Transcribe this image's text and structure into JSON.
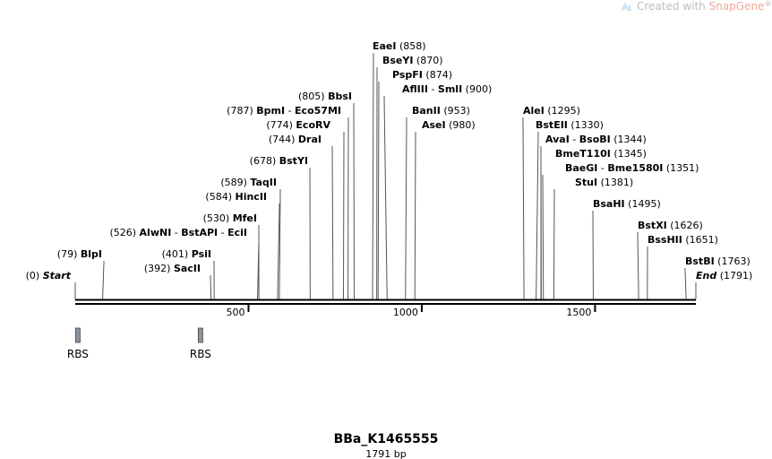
{
  "watermark": {
    "prefix": "Created with ",
    "brand": "SnapGene",
    "mark": "®",
    "icon": "snapgene-logo-icon"
  },
  "map": {
    "title": "BBa_K1465555",
    "subtitle": "1791 bp",
    "length": 1791,
    "ticks": [
      {
        "value": 500,
        "label": "500"
      },
      {
        "value": 1000,
        "label": "1000"
      },
      {
        "value": 1500,
        "label": "1500"
      }
    ],
    "colors": {
      "backbone": "#000000",
      "feature": "#8b949c",
      "connector": "#555555"
    }
  },
  "features": [
    {
      "name": "RBS",
      "start": 1,
      "end": 12
    },
    {
      "name": "RBS",
      "start": 355,
      "end": 366
    }
  ],
  "sites": [
    {
      "parts": [
        [
          "pos",
          "(0)"
        ],
        [
          "term",
          "Start"
        ]
      ],
      "pos": 0,
      "side": "left"
    },
    {
      "parts": [
        [
          "pos",
          "(79)"
        ],
        [
          "enz",
          "BlpI"
        ]
      ],
      "pos": 79,
      "side": "left"
    },
    {
      "parts": [
        [
          "pos",
          "(392)"
        ],
        [
          "enz",
          "SacII"
        ]
      ],
      "pos": 392,
      "side": "left"
    },
    {
      "parts": [
        [
          "pos",
          "(401)"
        ],
        [
          "enz",
          "PsiI"
        ]
      ],
      "pos": 401,
      "side": "left"
    },
    {
      "parts": [
        [
          "pos",
          "(526)"
        ],
        [
          "enz",
          "AlwNI"
        ],
        [
          "sep",
          " - "
        ],
        [
          "enz",
          "BstAPI"
        ],
        [
          "sep",
          " - "
        ],
        [
          "enz",
          "EciI"
        ]
      ],
      "pos": 526,
      "side": "left"
    },
    {
      "parts": [
        [
          "pos",
          "(530)"
        ],
        [
          "enz",
          "MfeI"
        ]
      ],
      "pos": 530,
      "side": "left"
    },
    {
      "parts": [
        [
          "pos",
          "(584)"
        ],
        [
          "enz",
          "HincII"
        ]
      ],
      "pos": 584,
      "side": "left"
    },
    {
      "parts": [
        [
          "pos",
          "(589)"
        ],
        [
          "enz",
          "TaqII"
        ]
      ],
      "pos": 589,
      "side": "left"
    },
    {
      "parts": [
        [
          "pos",
          "(678)"
        ],
        [
          "enz",
          "BstYI"
        ]
      ],
      "pos": 678,
      "side": "left"
    },
    {
      "parts": [
        [
          "pos",
          "(744)"
        ],
        [
          "enz",
          "DraI"
        ]
      ],
      "pos": 744,
      "side": "left"
    },
    {
      "parts": [
        [
          "pos",
          "(774)"
        ],
        [
          "enz",
          "EcoRV"
        ]
      ],
      "pos": 774,
      "side": "left"
    },
    {
      "parts": [
        [
          "pos",
          "(787)"
        ],
        [
          "enz",
          "BpmI"
        ],
        [
          "sep",
          " - "
        ],
        [
          "enz",
          "Eco57MI"
        ]
      ],
      "pos": 787,
      "side": "left"
    },
    {
      "parts": [
        [
          "pos",
          "(805)"
        ],
        [
          "enz",
          "BbsI"
        ]
      ],
      "pos": 805,
      "side": "left"
    },
    {
      "parts": [
        [
          "enz",
          "EaeI"
        ],
        [
          "pos",
          "(858)"
        ]
      ],
      "pos": 858,
      "side": "right"
    },
    {
      "parts": [
        [
          "enz",
          "BseYI"
        ],
        [
          "pos",
          "(870)"
        ]
      ],
      "pos": 870,
      "side": "right"
    },
    {
      "parts": [
        [
          "enz",
          "PspFI"
        ],
        [
          "pos",
          "(874)"
        ]
      ],
      "pos": 874,
      "side": "right"
    },
    {
      "parts": [
        [
          "enz",
          "AflIII"
        ],
        [
          "sep",
          " - "
        ],
        [
          "enz",
          "SmlI"
        ],
        [
          "pos",
          "(900)"
        ]
      ],
      "pos": 900,
      "side": "right"
    },
    {
      "parts": [
        [
          "enz",
          "BanII"
        ],
        [
          "pos",
          "(953)"
        ]
      ],
      "pos": 953,
      "side": "right"
    },
    {
      "parts": [
        [
          "enz",
          "AseI"
        ],
        [
          "pos",
          "(980)"
        ]
      ],
      "pos": 980,
      "side": "right"
    },
    {
      "parts": [
        [
          "enz",
          "AleI"
        ],
        [
          "pos",
          "(1295)"
        ]
      ],
      "pos": 1295,
      "side": "right"
    },
    {
      "parts": [
        [
          "enz",
          "BstEII"
        ],
        [
          "pos",
          "(1330)"
        ]
      ],
      "pos": 1330,
      "side": "right"
    },
    {
      "parts": [
        [
          "enz",
          "AvaI"
        ],
        [
          "sep",
          " - "
        ],
        [
          "enz",
          "BsoBI"
        ],
        [
          "pos",
          "(1344)"
        ]
      ],
      "pos": 1344,
      "side": "right"
    },
    {
      "parts": [
        [
          "enz",
          "BmeT110I"
        ],
        [
          "pos",
          "(1345)"
        ]
      ],
      "pos": 1345,
      "side": "right"
    },
    {
      "parts": [
        [
          "enz",
          "BaeGI"
        ],
        [
          "sep",
          " - "
        ],
        [
          "enz",
          "Bme1580I"
        ],
        [
          "pos",
          "(1351)"
        ]
      ],
      "pos": 1351,
      "side": "right"
    },
    {
      "parts": [
        [
          "enz",
          "StuI"
        ],
        [
          "pos",
          "(1381)"
        ]
      ],
      "pos": 1381,
      "side": "right"
    },
    {
      "parts": [
        [
          "enz",
          "BsaHI"
        ],
        [
          "pos",
          "(1495)"
        ]
      ],
      "pos": 1495,
      "side": "right"
    },
    {
      "parts": [
        [
          "enz",
          "BstXI"
        ],
        [
          "pos",
          "(1626)"
        ]
      ],
      "pos": 1626,
      "side": "right"
    },
    {
      "parts": [
        [
          "enz",
          "BssHII"
        ],
        [
          "pos",
          "(1651)"
        ]
      ],
      "pos": 1651,
      "side": "right"
    },
    {
      "parts": [
        [
          "enz",
          "BstBI"
        ],
        [
          "pos",
          "(1763)"
        ]
      ],
      "pos": 1763,
      "side": "right"
    },
    {
      "parts": [
        [
          "term",
          "End"
        ],
        [
          "pos",
          "(1791)"
        ]
      ],
      "pos": 1791,
      "side": "right"
    }
  ]
}
